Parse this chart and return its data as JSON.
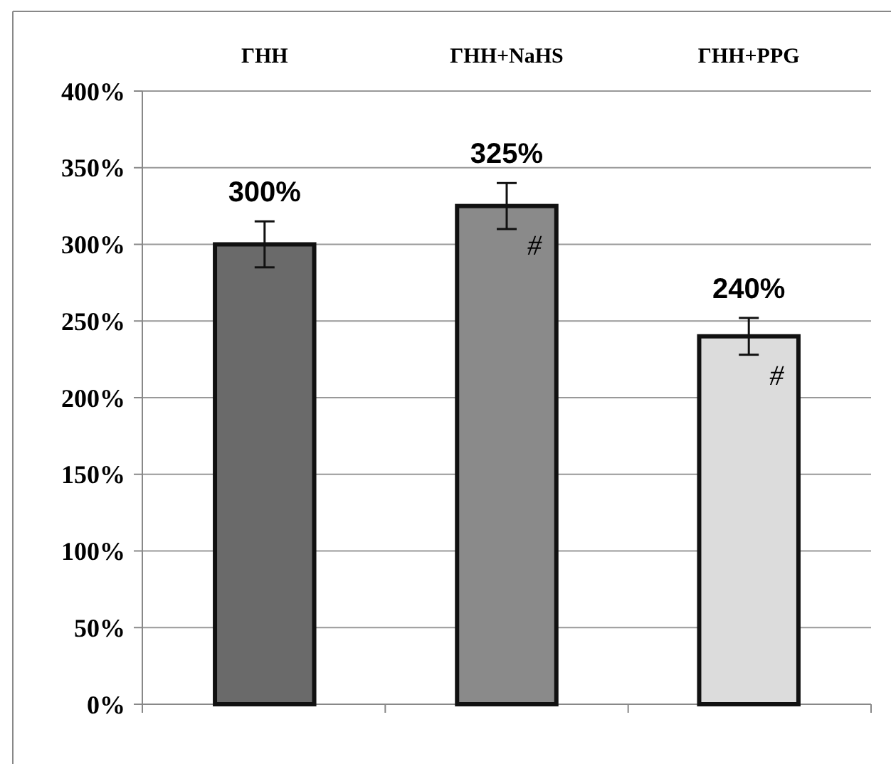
{
  "chart_data": {
    "type": "bar",
    "categories": [
      "ГНН",
      "ГНН+NaHS",
      "ГНН+PPG"
    ],
    "values": [
      300,
      325,
      240
    ],
    "colors": [
      "#6a6a6a",
      "#8a8a8a",
      "#dcdcdc"
    ],
    "errors": [
      15,
      15,
      12
    ],
    "value_labels": [
      "300%",
      "325%",
      "240%"
    ],
    "ylim": [
      0,
      400
    ],
    "yticks": [
      {
        "value": 0,
        "label": "0%"
      },
      {
        "value": 50,
        "label": "50%"
      },
      {
        "value": 100,
        "label": "100%"
      },
      {
        "value": 150,
        "label": "150%"
      },
      {
        "value": 200,
        "label": "200%"
      },
      {
        "value": 250,
        "label": "250%"
      },
      {
        "value": 300,
        "label": "300%"
      },
      {
        "value": 350,
        "label": "350%"
      },
      {
        "value": 400,
        "label": "400%"
      }
    ],
    "grid": "y",
    "annotations": [
      {
        "text": "#",
        "x": "ГНН+NaHS",
        "y": 310
      },
      {
        "text": "#",
        "x": "ГНН+PPG",
        "y": 225
      }
    ]
  }
}
